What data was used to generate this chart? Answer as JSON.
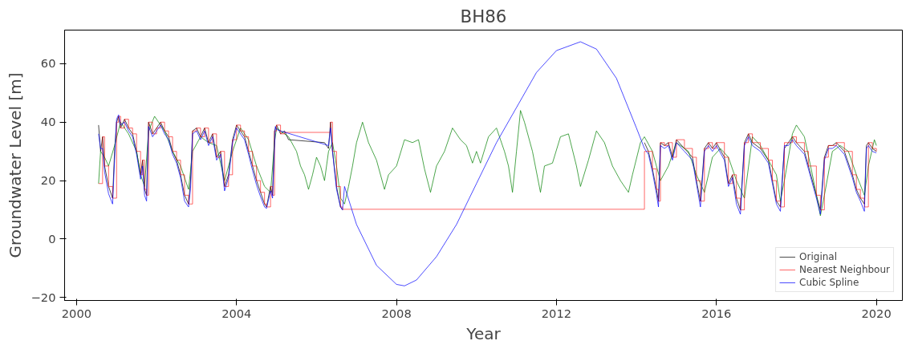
{
  "chart_data": {
    "type": "line",
    "title": "BH86",
    "xlabel": "Year",
    "ylabel": "Groundwater Level [m]",
    "xlim": [
      1999.7,
      2020.65
    ],
    "ylim": [
      -21,
      71.5
    ],
    "xticks": [
      2000,
      2004,
      2008,
      2012,
      2016,
      2020
    ],
    "yticks": [
      -20,
      0,
      20,
      40,
      60
    ],
    "grid": false,
    "legend": "bottom right",
    "line_style": "solid",
    "marker": "none",
    "series": [
      {
        "name": "Original",
        "color": "#000000",
        "x": [
          2000.55,
          2000.6,
          2000.65,
          2000.7,
          2000.8,
          2000.9,
          2000.95,
          2001.0,
          2001.05,
          2001.1,
          2001.2,
          2001.3,
          2001.4,
          2001.5,
          2001.6,
          2001.65,
          2001.7,
          2001.75,
          2001.8,
          2001.9,
          2002.0,
          2002.1,
          2002.2,
          2002.3,
          2002.4,
          2002.5,
          2002.6,
          2002.7,
          2002.8,
          2002.85,
          2002.9,
          2003.0,
          2003.1,
          2003.2,
          2003.3,
          2003.4,
          2003.5,
          2003.6,
          2003.7,
          2003.8,
          2003.9,
          2004.0,
          2004.1,
          2004.2,
          2004.3,
          2004.4,
          2004.5,
          2004.6,
          2004.7,
          2004.75,
          2004.85,
          2004.9,
          2004.95,
          2005.0,
          2005.1,
          2005.2,
          2005.3,
          2006.2,
          2006.3,
          2006.35,
          2006.4,
          2006.5,
          2006.6,
          2006.65,
          2010.5,
          2014.2,
          2014.3,
          2014.4,
          2014.5,
          2014.55,
          2014.6,
          2014.7,
          2014.8,
          2014.9,
          2015.0,
          2015.2,
          2015.4,
          2015.5,
          2015.6,
          2015.7,
          2015.8,
          2015.9,
          2016.0,
          2016.2,
          2016.3,
          2016.4,
          2016.5,
          2016.6,
          2016.7,
          2016.8,
          2016.9,
          2017.1,
          2017.3,
          2017.4,
          2017.5,
          2017.6,
          2017.7,
          2017.8,
          2017.9,
          2018.0,
          2018.2,
          2018.3,
          2018.5,
          2018.6,
          2018.7,
          2018.8,
          2018.9,
          2019.0,
          2019.2,
          2019.4,
          2019.5,
          2019.6,
          2019.7,
          2019.75,
          2019.8,
          2019.9,
          2020.0
        ],
        "values": [
          39,
          30,
          35,
          25,
          18,
          14,
          30,
          40,
          42,
          38,
          41,
          38,
          36,
          30,
          22,
          27,
          17,
          15,
          40,
          36,
          38,
          40,
          37,
          35,
          30,
          27,
          22,
          15,
          12,
          20,
          37,
          38,
          35,
          38,
          33,
          36,
          28,
          30,
          18,
          22,
          34,
          39,
          37,
          35,
          30,
          25,
          20,
          16,
          12,
          11,
          18,
          15,
          37,
          39,
          36,
          37,
          34,
          33,
          31,
          40,
          30,
          18,
          11,
          10,
          null,
          33,
          30,
          24,
          17,
          13,
          33,
          32,
          33,
          28,
          34,
          31,
          28,
          20,
          13,
          31,
          33,
          31,
          33,
          28,
          19,
          22,
          14,
          10,
          33,
          36,
          33,
          31,
          27,
          20,
          13,
          11,
          31,
          33,
          35,
          33,
          30,
          25,
          15,
          10,
          28,
          32,
          32,
          33,
          30,
          22,
          17,
          14,
          12,
          32,
          33,
          31,
          30
        ]
      },
      {
        "color": "#008000",
        "x": [
          2000.55,
          2000.6,
          2000.7,
          2000.8,
          2000.95,
          2001.1,
          2001.3,
          2001.5,
          2001.6,
          2001.7,
          2001.8,
          2001.95,
          2002.2,
          2002.4,
          2002.6,
          2002.8,
          2002.9,
          2003.1,
          2003.3,
          2003.5,
          2003.7,
          2003.9,
          2004.1,
          2004.3,
          2004.5,
          2004.7,
          2004.85,
          2004.95,
          2005.0,
          2005.3,
          2005.5,
          2005.6,
          2005.7,
          2005.8,
          2005.9,
          2006.0,
          2006.1,
          2006.2,
          2006.3,
          2006.4,
          2006.5,
          2006.6,
          2006.7,
          2006.8,
          2006.9,
          2007.0,
          2007.15,
          2007.3,
          2007.5,
          2007.7,
          2007.8,
          2008.0,
          2008.2,
          2008.4,
          2008.55,
          2008.7,
          2008.85,
          2009.0,
          2009.2,
          2009.4,
          2009.6,
          2009.75,
          2009.9,
          2010.0,
          2010.1,
          2010.3,
          2010.5,
          2010.7,
          2010.8,
          2010.9,
          2011.0,
          2011.1,
          2011.2,
          2011.4,
          2011.6,
          2011.7,
          2011.9,
          2012.1,
          2012.3,
          2012.5,
          2012.6,
          2012.8,
          2013.0,
          2013.2,
          2013.4,
          2013.6,
          2013.8,
          2013.9,
          2014.1,
          2014.2,
          2014.4,
          2014.6,
          2014.8,
          2015.0,
          2015.3,
          2015.5,
          2015.7,
          2015.9,
          2016.1,
          2016.3,
          2016.5,
          2016.7,
          2016.9,
          2017.1,
          2017.3,
          2017.5,
          2017.6,
          2017.7,
          2017.9,
          2018.0,
          2018.2,
          2018.4,
          2018.6,
          2018.7,
          2018.9,
          2019.1,
          2019.3,
          2019.5,
          2019.7,
          2019.8,
          2019.95,
          2020.0
        ],
        "values": [
          19,
          30,
          28,
          25,
          32,
          40,
          36,
          30,
          22,
          18,
          37,
          42,
          37,
          30,
          25,
          17,
          30,
          35,
          33,
          32,
          20,
          30,
          38,
          34,
          25,
          18,
          16,
          33,
          38,
          35,
          30,
          25,
          22,
          17,
          22,
          28,
          25,
          20,
          30,
          33,
          25,
          14,
          12,
          18,
          25,
          33,
          40,
          33,
          27,
          17,
          22,
          25,
          34,
          33,
          34,
          24,
          16,
          25,
          30,
          38,
          34,
          32,
          26,
          30,
          26,
          35,
          38,
          30,
          25,
          16,
          30,
          44,
          40,
          30,
          16,
          25,
          26,
          35,
          36,
          25,
          18,
          27,
          37,
          33,
          25,
          20,
          16,
          22,
          33,
          35,
          30,
          20,
          25,
          33,
          30,
          22,
          16,
          28,
          31,
          28,
          20,
          14,
          35,
          32,
          27,
          22,
          13,
          20,
          36,
          39,
          35,
          22,
          8,
          15,
          30,
          32,
          30,
          22,
          15,
          25,
          34,
          32
        ]
      },
      {
        "name": "Nearest Neighbour",
        "type": "step",
        "color": "#ff0000",
        "x": [
          2000.55,
          2000.65,
          2000.7,
          2000.8,
          2000.9,
          2000.95,
          2001.0,
          2001.05,
          2001.1,
          2001.2,
          2001.3,
          2001.4,
          2001.5,
          2001.6,
          2001.65,
          2001.7,
          2001.75,
          2001.8,
          2001.9,
          2002.0,
          2002.1,
          2002.2,
          2002.3,
          2002.4,
          2002.5,
          2002.6,
          2002.7,
          2002.8,
          2002.85,
          2002.9,
          2003.0,
          2003.1,
          2003.2,
          2003.3,
          2003.4,
          2003.5,
          2003.6,
          2003.7,
          2003.8,
          2003.9,
          2004.0,
          2004.1,
          2004.2,
          2004.3,
          2004.4,
          2004.5,
          2004.6,
          2004.7,
          2004.75,
          2004.85,
          2004.9,
          2004.95,
          2005.0,
          2005.1,
          2005.2,
          2006.3,
          2006.35,
          2006.4,
          2006.5,
          2006.6,
          2006.65,
          2014.2,
          2014.2,
          2014.3,
          2014.4,
          2014.5,
          2014.55,
          2014.6,
          2014.7,
          2014.8,
          2014.9,
          2015.0,
          2015.2,
          2015.4,
          2015.5,
          2015.6,
          2015.7,
          2015.8,
          2015.9,
          2016.0,
          2016.2,
          2016.3,
          2016.4,
          2016.5,
          2016.6,
          2016.7,
          2016.8,
          2016.9,
          2017.1,
          2017.3,
          2017.4,
          2017.5,
          2017.6,
          2017.7,
          2017.8,
          2017.9,
          2018.0,
          2018.2,
          2018.3,
          2018.5,
          2018.6,
          2018.7,
          2018.8,
          2018.9,
          2019.0,
          2019.2,
          2019.4,
          2019.5,
          2019.6,
          2019.7,
          2019.75,
          2019.8,
          2019.9,
          2020.0
        ],
        "values": [
          19,
          35,
          25,
          18,
          14,
          14,
          40,
          42,
          38,
          41,
          38,
          36,
          30,
          22,
          27,
          17,
          15,
          40,
          36,
          38,
          40,
          37,
          35,
          30,
          27,
          22,
          15,
          12,
          12,
          37,
          38,
          35,
          38,
          33,
          36,
          28,
          30,
          18,
          22,
          34,
          39,
          37,
          35,
          30,
          25,
          20,
          16,
          12,
          11,
          18,
          15,
          37,
          39,
          36,
          36.5,
          36.5,
          40,
          30,
          18,
          11,
          10.2,
          10.2,
          30,
          30,
          24,
          17,
          13,
          33,
          32,
          33,
          28,
          34,
          31,
          28,
          20,
          13,
          31,
          33,
          31,
          33,
          28,
          19,
          22,
          14,
          10,
          33,
          36,
          33,
          31,
          27,
          20,
          13,
          11,
          33,
          33,
          35,
          33,
          30,
          25,
          15,
          10,
          28,
          32,
          32,
          33,
          30,
          22,
          17,
          14,
          11,
          11,
          33,
          31,
          30
        ]
      },
      {
        "name": "Cubic Spline",
        "color": "#0000ff",
        "x": [
          2000.55,
          2000.6,
          2000.65,
          2000.7,
          2000.8,
          2000.9,
          2000.95,
          2001.0,
          2001.05,
          2001.1,
          2001.2,
          2001.3,
          2001.4,
          2001.5,
          2001.6,
          2001.65,
          2001.7,
          2001.75,
          2001.8,
          2001.9,
          2002.0,
          2002.1,
          2002.2,
          2002.3,
          2002.4,
          2002.5,
          2002.6,
          2002.7,
          2002.8,
          2002.85,
          2002.9,
          2003.0,
          2003.1,
          2003.2,
          2003.3,
          2003.4,
          2003.5,
          2003.6,
          2003.7,
          2003.8,
          2003.9,
          2004.0,
          2004.1,
          2004.2,
          2004.3,
          2004.4,
          2004.5,
          2004.6,
          2004.7,
          2004.75,
          2004.85,
          2004.9,
          2004.97,
          2005.0,
          2005.1,
          2006.3,
          2006.35,
          2006.4,
          2006.5,
          2006.6,
          2006.65,
          2006.7,
          2007.0,
          2007.5,
          2008.0,
          2008.2,
          2008.5,
          2009.0,
          2009.5,
          2010.0,
          2010.5,
          2011.0,
          2011.5,
          2012.0,
          2012.6,
          2013.0,
          2013.5,
          2014.0,
          2014.2,
          2014.3,
          2014.4,
          2014.5,
          2014.55,
          2014.6,
          2014.7,
          2014.8,
          2014.9,
          2015.0,
          2015.2,
          2015.4,
          2015.5,
          2015.6,
          2015.7,
          2015.8,
          2015.9,
          2016.0,
          2016.2,
          2016.3,
          2016.4,
          2016.5,
          2016.6,
          2016.7,
          2016.8,
          2016.9,
          2017.1,
          2017.3,
          2017.4,
          2017.5,
          2017.6,
          2017.7,
          2017.8,
          2017.9,
          2018.0,
          2018.2,
          2018.3,
          2018.5,
          2018.6,
          2018.7,
          2018.8,
          2018.9,
          2019.0,
          2019.2,
          2019.4,
          2019.5,
          2019.6,
          2019.7,
          2019.75,
          2019.8,
          2019.9,
          2020.0
        ],
        "values": [
          36,
          31,
          31,
          23,
          15.5,
          12,
          27,
          41,
          42.5,
          39,
          40,
          37,
          35,
          29,
          20.5,
          25,
          15,
          13,
          38.5,
          35,
          37,
          39,
          36,
          34,
          29,
          26,
          21,
          13,
          11,
          17.5,
          36,
          37,
          34,
          37,
          32,
          35,
          27,
          29,
          16.5,
          21,
          33,
          38,
          36,
          34,
          29,
          23.5,
          18.5,
          14.5,
          11,
          10.5,
          16.5,
          14,
          38.5,
          37.5,
          37,
          32,
          38,
          30,
          17,
          11,
          10,
          18,
          5,
          -9,
          -15.5,
          -16,
          -14,
          -6,
          5,
          19,
          33,
          45,
          57,
          64.5,
          67.5,
          65,
          55,
          38,
          31,
          29,
          23,
          15.5,
          11,
          32,
          31,
          32,
          27,
          33,
          30,
          27,
          19,
          11,
          30,
          32,
          30,
          32,
          27,
          18,
          21,
          12,
          8.5,
          32,
          35,
          32,
          30,
          26,
          19,
          12,
          9.5,
          32,
          32,
          34,
          32,
          29,
          24,
          14,
          8.5,
          27,
          31,
          31,
          32,
          29,
          21,
          16,
          13,
          9.5,
          31,
          32,
          30,
          29.5
        ]
      }
    ]
  }
}
